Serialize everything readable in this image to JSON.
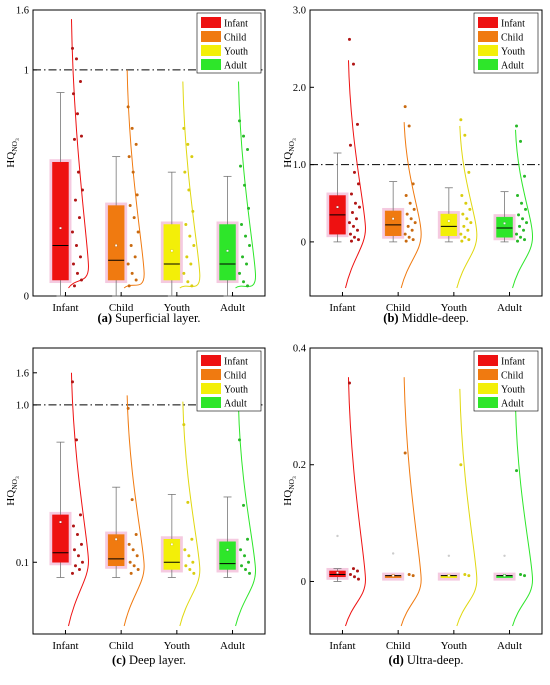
{
  "figure": {
    "y_symbol": "HQ",
    "y_subscript": "NO",
    "y_sub_sub": "3",
    "legend": [
      "Infant",
      "Child",
      "Youth",
      "Adult"
    ],
    "colors": {
      "Infant": "#ee1111",
      "Child": "#f07a10",
      "Youth": "#f3ef08",
      "Adult": "#2ee62a",
      "halo": "#f2b8d6",
      "dot_Infant": "#b01515",
      "dot_Child": "#c96a10",
      "dot_Youth": "#d9cd10",
      "dot_Adult": "#28b828"
    }
  },
  "chart_data": [
    {
      "type": "box",
      "caption_tag": "(a)",
      "caption_text": " Superficial layer.",
      "scale": "sqrt",
      "ylim": [
        0,
        1.6
      ],
      "yticks": [
        "0",
        "1",
        "1.6"
      ],
      "threshold": 1,
      "categories": [
        "Infant",
        "Child",
        "Youth",
        "Adult"
      ],
      "series": [
        {
          "name": "Infant",
          "whisker_low": 0,
          "q1": 0.005,
          "median": 0.05,
          "q3": 0.35,
          "whisker_high": 0.81,
          "mean": 0.09,
          "curve_top": 1.5,
          "points": [
            1.2,
            1.1,
            0.9,
            0.8,
            0.65,
            0.5,
            0.48,
            0.3,
            0.22,
            0.18,
            0.12,
            0.08,
            0.05,
            0.03,
            0.02,
            0.01,
            0.005,
            0.002
          ]
        },
        {
          "name": "Child",
          "whisker_low": 0,
          "q1": 0.005,
          "median": 0.025,
          "q3": 0.16,
          "whisker_high": 0.38,
          "mean": 0.05,
          "curve_top": 1.0,
          "points": [
            0.7,
            0.55,
            0.45,
            0.38,
            0.3,
            0.2,
            0.16,
            0.12,
            0.08,
            0.05,
            0.03,
            0.02,
            0.01,
            0.005,
            0.002
          ]
        },
        {
          "name": "Youth",
          "whisker_low": 0,
          "q1": 0.005,
          "median": 0.02,
          "q3": 0.1,
          "whisker_high": 0.3,
          "mean": 0.04,
          "curve_top": 0.9,
          "points": [
            0.55,
            0.45,
            0.38,
            0.3,
            0.22,
            0.14,
            0.1,
            0.07,
            0.05,
            0.03,
            0.02,
            0.01,
            0.004,
            0.002
          ]
        },
        {
          "name": "Adult",
          "whisker_low": 0,
          "q1": 0.005,
          "median": 0.02,
          "q3": 0.1,
          "whisker_high": 0.28,
          "mean": 0.04,
          "curve_top": 0.9,
          "points": [
            0.6,
            0.5,
            0.42,
            0.33,
            0.24,
            0.15,
            0.1,
            0.07,
            0.05,
            0.03,
            0.02,
            0.01,
            0.004,
            0.002
          ]
        }
      ]
    },
    {
      "type": "box",
      "caption_tag": "(b)",
      "caption_text": " Middle-deep.",
      "scale": "linear",
      "ylim": [
        -0.7,
        3.0
      ],
      "yticks": [
        "0",
        "1.0",
        "2.0",
        "3.0"
      ],
      "threshold": 1.0,
      "categories": [
        "Infant",
        "Child",
        "Youth",
        "Adult"
      ],
      "series": [
        {
          "name": "Infant",
          "whisker_low": 0,
          "q1": 0.1,
          "median": 0.35,
          "q3": 0.6,
          "whisker_high": 1.15,
          "mean": 0.45,
          "curve_top": 2.35,
          "points": [
            2.62,
            2.3,
            1.52,
            1.25,
            0.9,
            0.75,
            0.62,
            0.5,
            0.45,
            0.38,
            0.3,
            0.25,
            0.2,
            0.15,
            0.1,
            0.06,
            0.03,
            0.01
          ]
        },
        {
          "name": "Child",
          "whisker_low": 0,
          "q1": 0.08,
          "median": 0.22,
          "q3": 0.4,
          "whisker_high": 0.78,
          "mean": 0.3,
          "curve_top": 1.55,
          "points": [
            1.75,
            1.5,
            0.75,
            0.6,
            0.5,
            0.42,
            0.36,
            0.3,
            0.25,
            0.2,
            0.15,
            0.1,
            0.06,
            0.03,
            0.01
          ]
        },
        {
          "name": "Youth",
          "whisker_low": 0,
          "q1": 0.08,
          "median": 0.2,
          "q3": 0.36,
          "whisker_high": 0.7,
          "mean": 0.27,
          "curve_top": 1.5,
          "points": [
            1.58,
            1.38,
            0.9,
            0.6,
            0.5,
            0.42,
            0.36,
            0.3,
            0.25,
            0.2,
            0.15,
            0.1,
            0.06,
            0.03,
            0.01
          ]
        },
        {
          "name": "Adult",
          "whisker_low": 0,
          "q1": 0.06,
          "median": 0.18,
          "q3": 0.32,
          "whisker_high": 0.65,
          "mean": 0.24,
          "curve_top": 1.45,
          "points": [
            1.5,
            1.3,
            0.85,
            0.6,
            0.5,
            0.42,
            0.35,
            0.3,
            0.25,
            0.2,
            0.15,
            0.1,
            0.06,
            0.03,
            0.01
          ]
        }
      ]
    },
    {
      "type": "box",
      "caption_tag": "(c)",
      "caption_text": " Deep layer.",
      "scale": "log",
      "ylim": [
        0.035,
        2.3
      ],
      "yticks": [
        "0.1",
        "1.0",
        "1.6"
      ],
      "threshold": 1.0,
      "categories": [
        "Infant",
        "Child",
        "Youth",
        "Adult"
      ],
      "series": [
        {
          "name": "Infant",
          "whisker_low": 0.08,
          "q1": 0.1,
          "median": 0.115,
          "q3": 0.2,
          "whisker_high": 0.58,
          "mean": 0.18,
          "curve_top": 1.6,
          "points": [
            1.4,
            0.6,
            0.2,
            0.17,
            0.15,
            0.13,
            0.12,
            0.11,
            0.1,
            0.095,
            0.09,
            0.085
          ]
        },
        {
          "name": "Child",
          "whisker_low": 0.08,
          "q1": 0.095,
          "median": 0.105,
          "q3": 0.15,
          "whisker_high": 0.3,
          "mean": 0.14,
          "curve_top": 1.15,
          "points": [
            0.95,
            0.25,
            0.15,
            0.13,
            0.12,
            0.11,
            0.1,
            0.095,
            0.09,
            0.085
          ]
        },
        {
          "name": "Youth",
          "whisker_low": 0.08,
          "q1": 0.09,
          "median": 0.1,
          "q3": 0.14,
          "whisker_high": 0.27,
          "mean": 0.13,
          "curve_top": 1.05,
          "points": [
            0.75,
            0.24,
            0.14,
            0.12,
            0.11,
            0.1,
            0.095,
            0.09,
            0.085
          ]
        },
        {
          "name": "Adult",
          "whisker_low": 0.08,
          "q1": 0.09,
          "median": 0.098,
          "q3": 0.135,
          "whisker_high": 0.26,
          "mean": 0.12,
          "curve_top": 0.98,
          "points": [
            0.6,
            0.23,
            0.14,
            0.12,
            0.11,
            0.1,
            0.095,
            0.09,
            0.085
          ]
        }
      ]
    },
    {
      "type": "box",
      "caption_tag": "(d)",
      "caption_text": " Ultra-deep.",
      "scale": "linear",
      "ylim": [
        -0.09,
        0.4
      ],
      "yticks": [
        "0",
        "0.2",
        "0.4"
      ],
      "threshold": null,
      "categories": [
        "Infant",
        "Child",
        "Youth",
        "Adult"
      ],
      "series": [
        {
          "name": "Infant",
          "whisker_low": 0,
          "q1": 0.008,
          "median": 0.012,
          "q3": 0.018,
          "whisker_high": 0.022,
          "mean": 0.015,
          "outlier": 0.078,
          "curve_top": 0.35,
          "points": [
            0.34,
            0.022,
            0.018,
            0.012,
            0.008,
            0.004
          ]
        },
        {
          "name": "Child",
          "whisker_low": 0.01,
          "q1": 0.01,
          "median": 0.01,
          "q3": 0.01,
          "whisker_high": 0.01,
          "mean": 0.01,
          "outlier": 0.048,
          "curve_top": 0.35,
          "points": [
            0.22,
            0.012,
            0.01
          ]
        },
        {
          "name": "Youth",
          "whisker_low": 0.01,
          "q1": 0.01,
          "median": 0.01,
          "q3": 0.01,
          "whisker_high": 0.01,
          "mean": 0.01,
          "outlier": 0.044,
          "curve_top": 0.33,
          "points": [
            0.2,
            0.012,
            0.01
          ]
        },
        {
          "name": "Adult",
          "whisker_low": 0.01,
          "q1": 0.01,
          "median": 0.01,
          "q3": 0.01,
          "whisker_high": 0.01,
          "mean": 0.01,
          "outlier": 0.044,
          "curve_top": 0.3,
          "points": [
            0.19,
            0.012,
            0.01
          ]
        }
      ]
    }
  ]
}
